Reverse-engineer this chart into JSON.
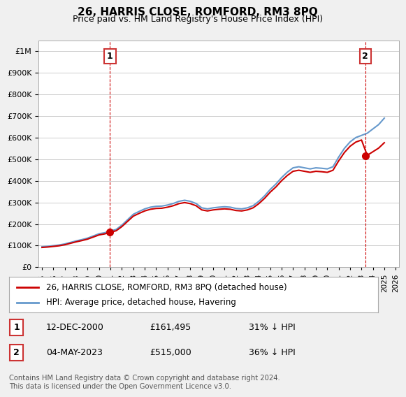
{
  "title": "26, HARRIS CLOSE, ROMFORD, RM3 8PQ",
  "subtitle": "Price paid vs. HM Land Registry's House Price Index (HPI)",
  "legend_label_red": "26, HARRIS CLOSE, ROMFORD, RM3 8PQ (detached house)",
  "legend_label_blue": "HPI: Average price, detached house, Havering",
  "annotation1_label": "1",
  "annotation1_date": "12-DEC-2000",
  "annotation1_price": 161495,
  "annotation1_note": "31% ↓ HPI",
  "annotation2_label": "2",
  "annotation2_date": "04-MAY-2023",
  "annotation2_price": 515000,
  "annotation2_note": "36% ↓ HPI",
  "footnote": "Contains HM Land Registry data © Crown copyright and database right 2024.\nThis data is licensed under the Open Government Licence v3.0.",
  "red_color": "#cc0000",
  "blue_color": "#6699cc",
  "background_color": "#f0f0f0",
  "plot_bg_color": "#ffffff",
  "ylim": [
    0,
    1050000
  ],
  "yticks": [
    0,
    100000,
    200000,
    300000,
    400000,
    500000,
    600000,
    700000,
    800000,
    900000,
    1000000
  ],
  "xstart_year": 1995,
  "xend_year": 2026
}
